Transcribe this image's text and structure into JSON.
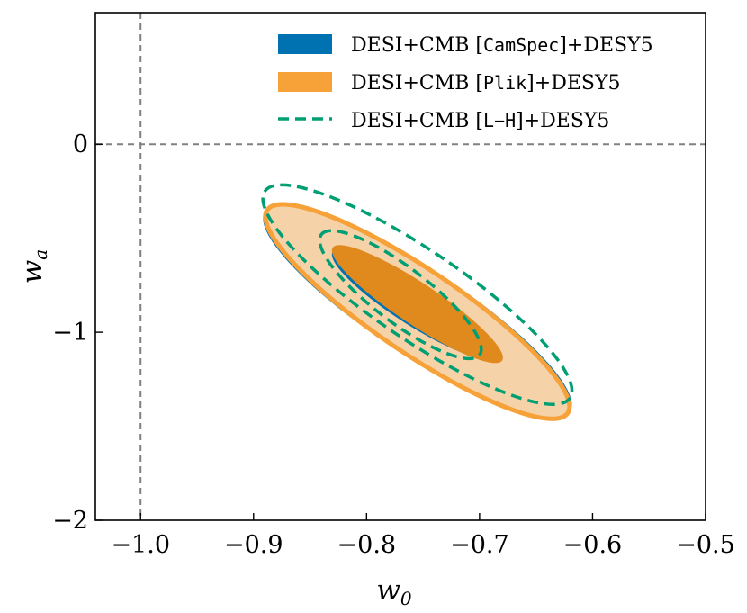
{
  "chart_data": {
    "type": "contour",
    "title": "",
    "xlabel": {
      "base": "w",
      "sub": "0"
    },
    "ylabel": {
      "base": "w",
      "sub": "a"
    },
    "xlim": [
      -1.04,
      -0.5
    ],
    "ylim": [
      -2.0,
      0.7
    ],
    "x_ticks": [
      -1.0,
      -0.9,
      -0.8,
      -0.7,
      -0.6,
      -0.5
    ],
    "x_tick_labels": [
      "−1.0",
      "−0.9",
      "−0.8",
      "−0.7",
      "−0.6",
      "−0.5"
    ],
    "y_ticks": [
      -2,
      -1,
      0
    ],
    "y_tick_labels": [
      "−2",
      "−1",
      "0"
    ],
    "grid": false,
    "reference_lines": [
      {
        "axis": "x",
        "value": -1.0,
        "style": "dashed",
        "color": "#808080"
      },
      {
        "axis": "y",
        "value": 0.0,
        "style": "dashed",
        "color": "#808080"
      }
    ],
    "legend_position": "top-right",
    "series": [
      {
        "legend": {
          "prefix": "DESI+CMB [",
          "mono": "CamSpec",
          "suffix": "]+DESY5"
        },
        "color": "#0072b2",
        "style": "filled",
        "contours": [
          {
            "level": "95%",
            "center": [
              -0.755,
              -0.89
            ],
            "axis_end": [
              -0.89,
              -0.36
            ],
            "minor_half_width": 0.07
          },
          {
            "level": "68%",
            "center": [
              -0.757,
              -0.85
            ],
            "axis_end": [
              -0.83,
              -0.57
            ],
            "minor_half_width": 0.035
          }
        ]
      },
      {
        "legend": {
          "prefix": "DESI+CMB [",
          "mono": "Plik",
          "suffix": "]+DESY5"
        },
        "color": "#f7a139",
        "inner_color": "#e08a1e",
        "light_color": "#f5d2a8",
        "style": "filled",
        "contours": [
          {
            "level": "95%",
            "center": [
              -0.755,
              -0.89
            ],
            "axis_end": [
              -0.888,
              -0.35
            ],
            "minor_half_width": 0.066
          },
          {
            "level": "68%",
            "center": [
              -0.755,
              -0.85
            ],
            "axis_end": [
              -0.83,
              -0.55
            ],
            "minor_half_width": 0.033
          }
        ]
      },
      {
        "legend": {
          "prefix": "DESI+CMB [",
          "mono": "L−H",
          "suffix": "]+DESY5"
        },
        "color": "#009e73",
        "style": "dashed",
        "contours": [
          {
            "level": "95%",
            "center": [
              -0.755,
              -0.8
            ],
            "axis_end": [
              -0.89,
              -0.25
            ],
            "minor_half_width": 0.07
          },
          {
            "level": "68%",
            "center": [
              -0.77,
              -0.8
            ],
            "axis_end": [
              -0.84,
              -0.48
            ],
            "minor_half_width": 0.04
          }
        ]
      }
    ]
  }
}
